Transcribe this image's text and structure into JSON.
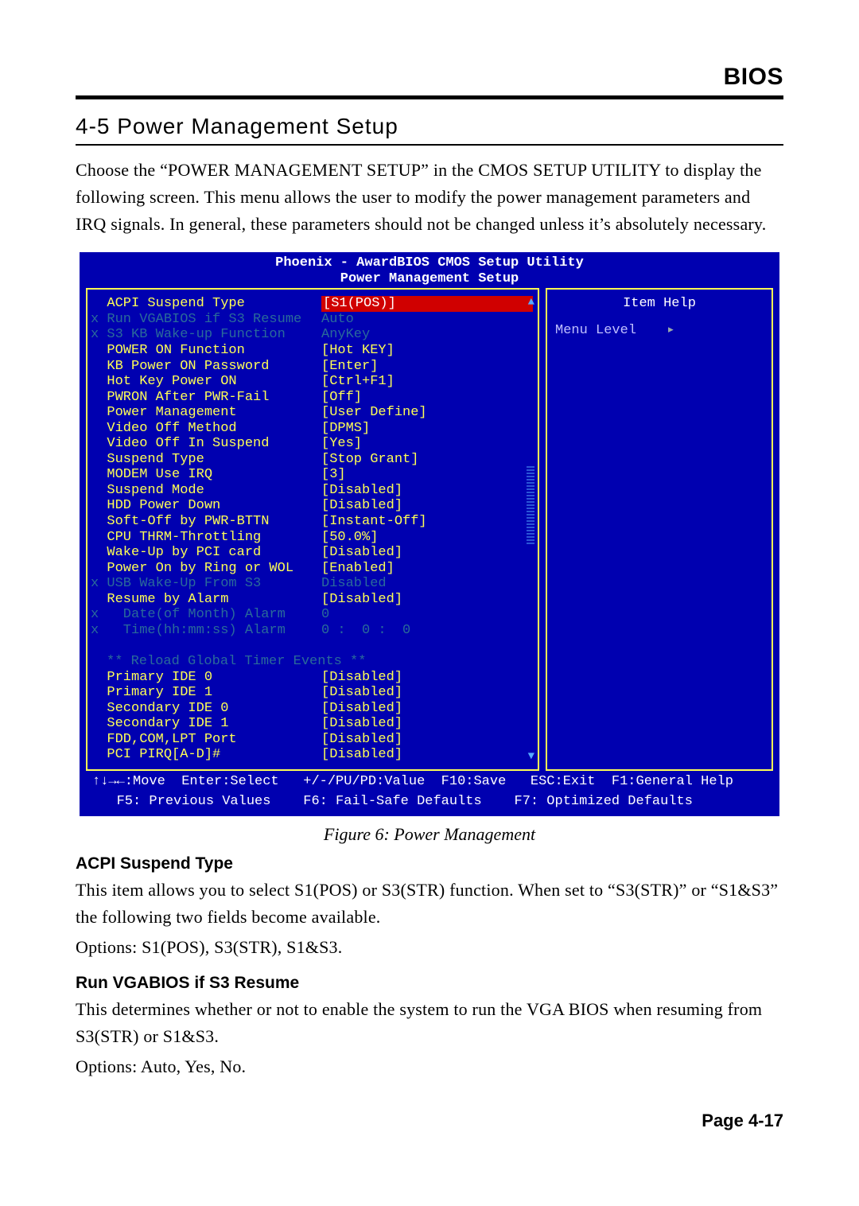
{
  "header": {
    "bios": "BIOS"
  },
  "section": {
    "title": "4-5 Power Management Setup",
    "intro": "Choose the “POWER MANAGEMENT SETUP” in the CMOS SETUP UTILITY to display the following screen. This menu allows the user to modify the power management parameters and IRQ signals. In general, these parameters should not be changed unless it’s absolutely necessary."
  },
  "caption": "Figure 6: Power Management",
  "acpi": {
    "heading": "ACPI Suspend Type",
    "body": "This item allows you to select S1(POS) or S3(STR) function. When set to “S3(STR)” or “S1&S3” the following two fields become available.",
    "options": "Options: S1(POS), S3(STR), S1&S3."
  },
  "vgabios": {
    "heading": "Run VGABIOS if S3 Resume",
    "body": "This determines whether or not to enable the system to run the VGA BIOS when resuming from S3(STR) or S1&S3.",
    "options": "Options: Auto, Yes, No."
  },
  "footer": {
    "page": "Page 4-17"
  },
  "bios": {
    "title_line1": "Phoenix - AwardBIOS CMOS Setup Utility",
    "title_line2": "Power Management Setup",
    "help_title": "Item Help",
    "menu_level": "Menu Level",
    "menu_arrow": "▸",
    "legend1": "↑↓→←:Move  Enter:Select   +/-/PU/PD:Value  F10:Save   ESC:Exit  F1:General Help",
    "legend2": "   F5: Previous Values    F6: Fail-Safe Defaults    F7: Optimized Defaults",
    "scroll_up": "▲",
    "scroll_down": "▼",
    "section_header": "** Reload Global Timer Events **",
    "rows": [
      {
        "prefix": "  ",
        "label": "ACPI Suspend Type",
        "value": "[S1(POS)]",
        "dim": false,
        "selected": true
      },
      {
        "prefix": "x ",
        "label": "Run VGABIOS if S3 Resume",
        "value": "Auto",
        "dim": true
      },
      {
        "prefix": "x ",
        "label": "S3 KB Wake-up Function",
        "value": "AnyKey",
        "dim": true
      },
      {
        "prefix": "  ",
        "label": "POWER ON Function",
        "value": "[Hot KEY]",
        "dim": false
      },
      {
        "prefix": "  ",
        "label": "KB Power ON Password",
        "value": "[Enter]",
        "dim": false
      },
      {
        "prefix": "  ",
        "label": "Hot Key Power ON",
        "value": "[Ctrl+F1]",
        "dim": false
      },
      {
        "prefix": "  ",
        "label": "PWRON After PWR-Fail",
        "value": "[Off]",
        "dim": false
      },
      {
        "prefix": "  ",
        "label": "Power Management",
        "value": "[User Define]",
        "dim": false
      },
      {
        "prefix": "  ",
        "label": "Video Off Method",
        "value": "[DPMS]",
        "dim": false
      },
      {
        "prefix": "  ",
        "label": "Video Off In Suspend",
        "value": "[Yes]",
        "dim": false
      },
      {
        "prefix": "  ",
        "label": "Suspend Type",
        "value": "[Stop Grant]",
        "dim": false
      },
      {
        "prefix": "  ",
        "label": "MODEM Use IRQ",
        "value": "[3]",
        "dim": false
      },
      {
        "prefix": "  ",
        "label": "Suspend Mode",
        "value": "[Disabled]",
        "dim": false
      },
      {
        "prefix": "  ",
        "label": "HDD Power Down",
        "value": "[Disabled]",
        "dim": false
      },
      {
        "prefix": "  ",
        "label": "Soft-Off by PWR-BTTN",
        "value": "[Instant-Off]",
        "dim": false
      },
      {
        "prefix": "  ",
        "label": "CPU THRM-Throttling",
        "value": "[50.0%]",
        "dim": false
      },
      {
        "prefix": "  ",
        "label": "Wake-Up by PCI card",
        "value": "[Disabled]",
        "dim": false
      },
      {
        "prefix": "  ",
        "label": "Power On by Ring or WOL",
        "value": "[Enabled]",
        "dim": false
      },
      {
        "prefix": "x ",
        "label": "USB Wake-Up From S3",
        "value": "Disabled",
        "dim": true
      },
      {
        "prefix": "  ",
        "label": "Resume by Alarm",
        "value": "[Disabled]",
        "dim": false
      },
      {
        "prefix": "x ",
        "label": "  Date(of Month) Alarm",
        "value": "0",
        "dim": true
      },
      {
        "prefix": "x ",
        "label": "  Time(hh:mm:ss) Alarm",
        "value": "0 :  0 :  0",
        "dim": true
      }
    ],
    "rows2": [
      {
        "label": "Primary IDE 0",
        "value": "[Disabled]"
      },
      {
        "label": "Primary IDE 1",
        "value": "[Disabled]"
      },
      {
        "label": "Secondary IDE 0",
        "value": "[Disabled]"
      },
      {
        "label": "Secondary IDE 1",
        "value": "[Disabled]"
      },
      {
        "label": "FDD,COM,LPT Port",
        "value": "[Disabled]"
      },
      {
        "label": "PCI PIRQ[A-D]#",
        "value": "[Disabled]"
      }
    ]
  }
}
